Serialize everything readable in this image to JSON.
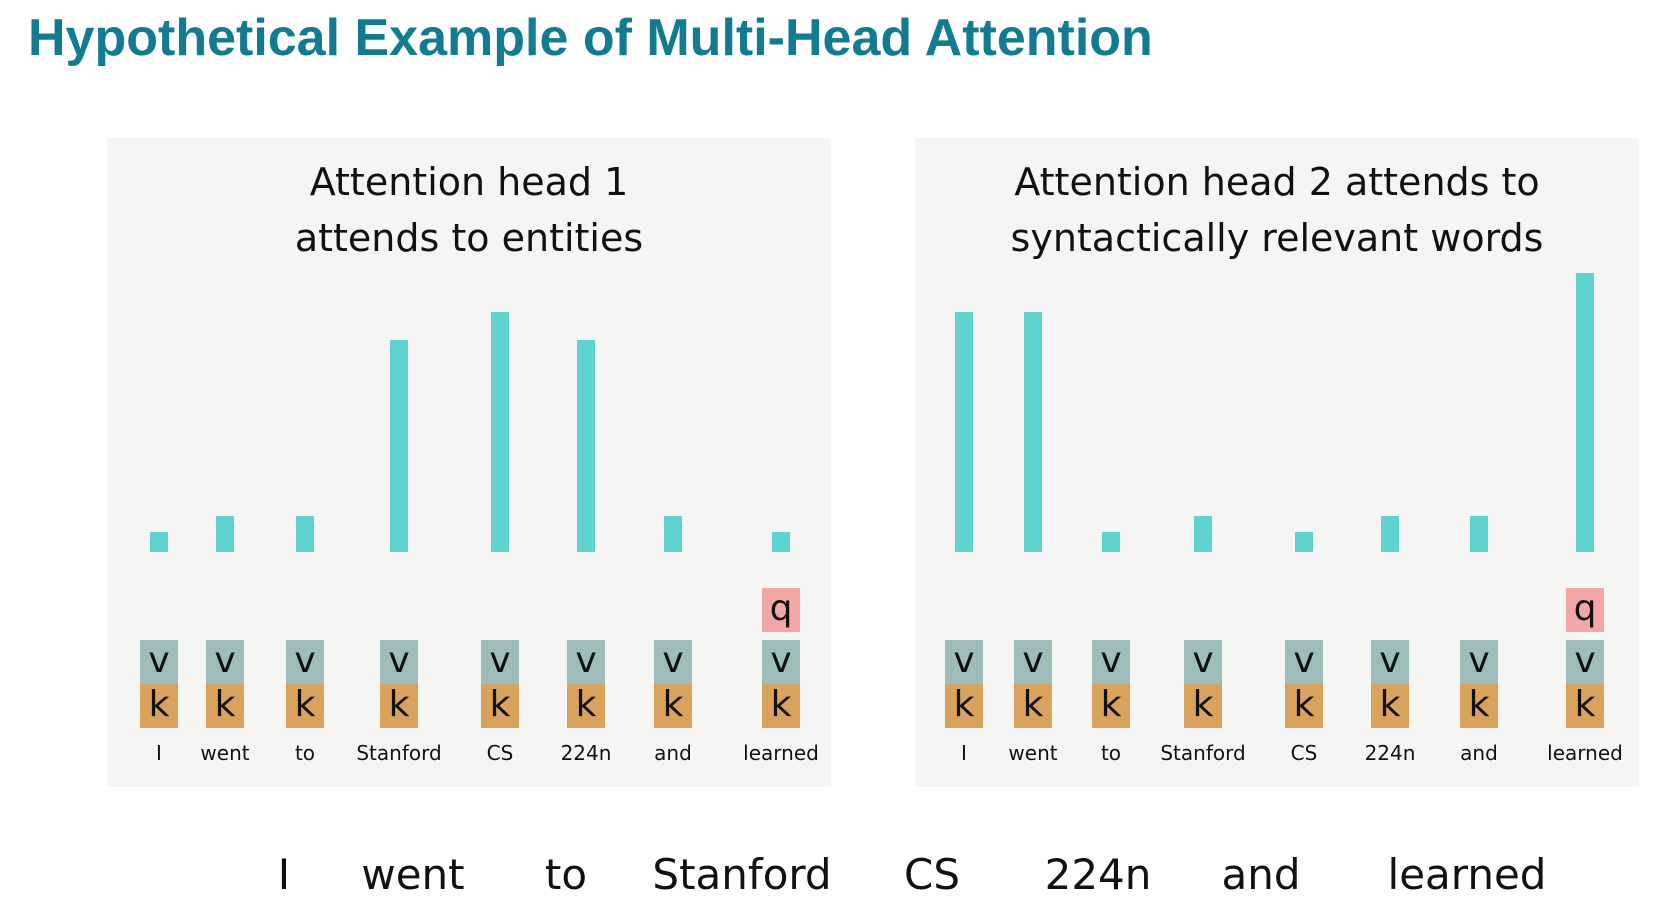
{
  "title": "Hypothetical Example of Multi-Head Attention",
  "panels": [
    {
      "title_lines": [
        "Attention head 1",
        "attends to entities"
      ],
      "query_label": "q",
      "value_label": "v",
      "key_label": "k",
      "words": [
        "I",
        "went",
        "to",
        "Stanford",
        "CS",
        "224n",
        "and",
        "learned"
      ],
      "attention": [
        0.07,
        0.13,
        0.13,
        0.76,
        0.86,
        0.76,
        0.13,
        0.07
      ],
      "query_word": "learned"
    },
    {
      "title_lines": [
        "Attention head 2 attends to",
        "syntactically relevant words"
      ],
      "query_label": "q",
      "value_label": "v",
      "key_label": "k",
      "words": [
        "I",
        "went",
        "to",
        "Stanford",
        "CS",
        "224n",
        "and",
        "learned"
      ],
      "attention": [
        0.86,
        0.86,
        0.07,
        0.13,
        0.07,
        0.13,
        0.13,
        1.0
      ],
      "query_word": "learned"
    }
  ],
  "sentence": [
    "I",
    "went",
    "to",
    "Stanford",
    "CS",
    "224n",
    "and",
    "learned"
  ],
  "colors": {
    "title": "#127b91",
    "panel_bg": "#f5f6f3",
    "attention_bar": "#5fd3d0",
    "query_box": "#f2a6a6",
    "value_box": "#9cbdb9",
    "key_box": "#d9a35e"
  }
}
